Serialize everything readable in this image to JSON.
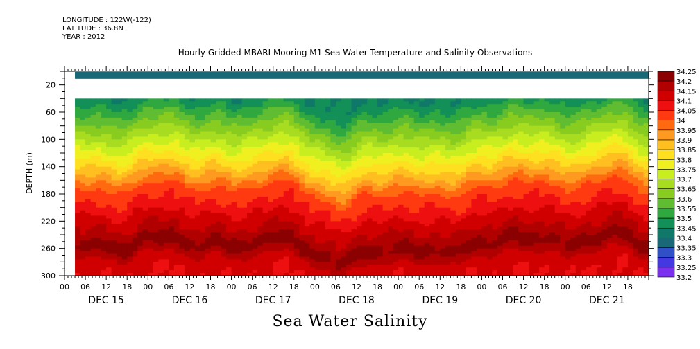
{
  "header": {
    "longitude": "LONGITUDE : 122W(-122)",
    "latitude": "LATITUDE : 36.8N",
    "year": "YEAR : 2012"
  },
  "chart_data": {
    "type": "heatmap",
    "title": "Hourly Gridded MBARI Mooring M1 Sea Water Temperature and Salinity Observations",
    "subtitle": "Sea Water Salinity",
    "ylabel": "DEPTH (m)",
    "ylim": [
      300,
      0
    ],
    "yticks": [
      20,
      60,
      100,
      140,
      180,
      220,
      260,
      300
    ],
    "xlim_hours": [
      0,
      168
    ],
    "x_day_labels": [
      "DEC 15",
      "DEC 16",
      "DEC 17",
      "DEC 18",
      "DEC 19",
      "DEC 20",
      "DEC 21"
    ],
    "x_hour_labels": [
      "00",
      "06",
      "12",
      "18"
    ],
    "colorbar_levels": [
      "34.25",
      "34.2",
      "34.15",
      "34.1",
      "34.05",
      "34",
      "33.95",
      "33.9",
      "33.85",
      "33.8",
      "33.75",
      "33.7",
      "33.65",
      "33.6",
      "33.55",
      "33.5",
      "33.45",
      "33.4",
      "33.35",
      "33.3",
      "33.25",
      "33.2"
    ],
    "colorbar_colors": [
      "#8b0000",
      "#b00000",
      "#d00000",
      "#ee1010",
      "#ff3a10",
      "#ff6a10",
      "#ff9a20",
      "#ffbf20",
      "#ffe020",
      "#f0f020",
      "#c8ee20",
      "#a8dc20",
      "#88cc20",
      "#60bc30",
      "#30a840",
      "#129058",
      "#107868",
      "#186878",
      "#3050c8",
      "#4438e0",
      "#7a30ee",
      "#c020f0"
    ],
    "data_start_hour": 3,
    "surface_band_depth_m": [
      0,
      10
    ],
    "surface_band_value": 33.35,
    "data_top_depth_m": 40,
    "depth_profile_m": [
      40,
      60,
      80,
      100,
      120,
      140,
      160,
      180,
      200,
      220,
      240,
      250,
      260,
      270,
      280,
      300
    ],
    "salinity_profile": [
      33.45,
      33.52,
      33.6,
      33.68,
      33.76,
      33.84,
      33.93,
      34.02,
      34.06,
      34.12,
      34.17,
      34.21,
      34.22,
      34.18,
      34.13,
      34.1
    ],
    "uplift_events": [
      {
        "hour": 30,
        "depth_shift_m": 15
      },
      {
        "hour": 60,
        "depth_shift_m": 12
      },
      {
        "hour": 80,
        "depth_shift_m": -25
      },
      {
        "hour": 104,
        "depth_shift_m": -10
      },
      {
        "hour": 132,
        "depth_shift_m": 18
      },
      {
        "hour": 156,
        "depth_shift_m": 20
      }
    ]
  }
}
